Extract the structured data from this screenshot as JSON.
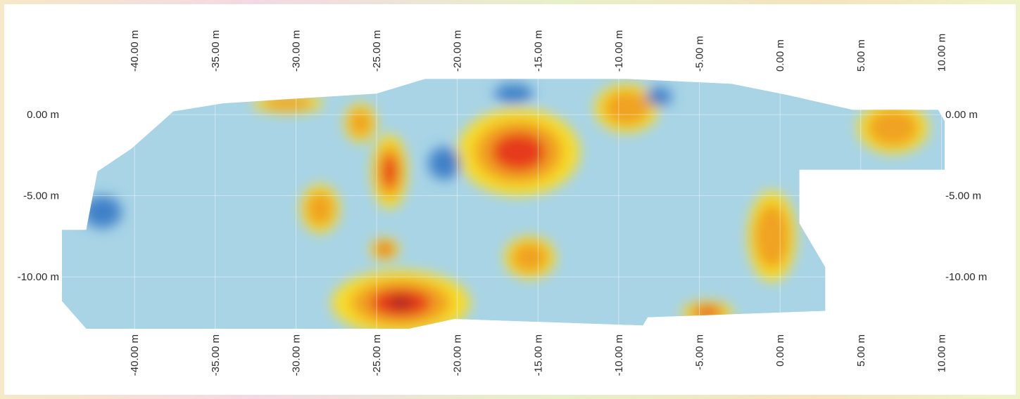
{
  "chart_data": {
    "type": "heatmap",
    "title": "",
    "xlabel": "",
    "ylabel": "",
    "x_ticks": [
      {
        "value": -40,
        "label": "-40.00 m"
      },
      {
        "value": -35,
        "label": "-35.00 m"
      },
      {
        "value": -30,
        "label": "-30.00 m"
      },
      {
        "value": -25,
        "label": "-25.00 m"
      },
      {
        "value": -20,
        "label": "-20.00 m"
      },
      {
        "value": -15,
        "label": "-15.00 m"
      },
      {
        "value": -10,
        "label": "-10.00 m"
      },
      {
        "value": -5,
        "label": "-5.00 m"
      },
      {
        "value": 0,
        "label": "0.00 m"
      },
      {
        "value": 5,
        "label": "5.00 m"
      },
      {
        "value": 10,
        "label": "10.00 m"
      }
    ],
    "y_ticks": [
      {
        "value": 0,
        "label": "0.00 m"
      },
      {
        "value": -5,
        "label": "-5.00 m"
      },
      {
        "value": -10,
        "label": "-10.00 m"
      }
    ],
    "xlim": [
      -44.5,
      10.2
    ],
    "ylim": [
      -13.2,
      2.3
    ],
    "grid": true,
    "colorscale": [
      "#3f80c8",
      "#a8d4e6",
      "#f7dc2a",
      "#f0a224",
      "#e63a1e",
      "#8e2020"
    ],
    "survey_outline": [
      [
        -44.5,
        -7.1
      ],
      [
        -43.0,
        -7.1
      ],
      [
        -42.3,
        -3.5
      ],
      [
        -40.2,
        -2.1
      ],
      [
        -38.5,
        -0.6
      ],
      [
        -37.6,
        0.2
      ],
      [
        -34.5,
        0.7
      ],
      [
        -25.0,
        1.3
      ],
      [
        -22.0,
        2.2
      ],
      [
        -9.5,
        2.2
      ],
      [
        -3.0,
        1.9
      ],
      [
        0.5,
        1.2
      ],
      [
        4.5,
        0.3
      ],
      [
        9.8,
        0.3
      ],
      [
        10.2,
        -0.4
      ],
      [
        10.2,
        -3.4
      ],
      [
        1.2,
        -3.4
      ],
      [
        1.2,
        -6.7
      ],
      [
        2.8,
        -9.4
      ],
      [
        2.8,
        -12.1
      ],
      [
        -8.2,
        -12.5
      ],
      [
        -8.5,
        -13.0
      ],
      [
        -20.2,
        -12.6
      ],
      [
        -23.0,
        -13.2
      ],
      [
        -43.0,
        -13.2
      ],
      [
        -44.5,
        -11.5
      ]
    ],
    "anomalies": [
      {
        "x": -23.5,
        "y": -11.6,
        "rx": 4.3,
        "ry": 2.0,
        "level": 5
      },
      {
        "x": -16.2,
        "y": -2.3,
        "rx": 3.8,
        "ry": 2.7,
        "level": 4
      },
      {
        "x": -24.2,
        "y": -3.5,
        "rx": 1.1,
        "ry": 2.3,
        "level": 4
      },
      {
        "x": -0.5,
        "y": -7.5,
        "rx": 1.5,
        "ry": 2.8,
        "level": 3
      },
      {
        "x": 7.0,
        "y": -0.8,
        "rx": 2.2,
        "ry": 1.6,
        "level": 3
      },
      {
        "x": -9.5,
        "y": 0.4,
        "rx": 2.0,
        "ry": 1.5,
        "level": 3
      },
      {
        "x": -30.5,
        "y": 0.7,
        "rx": 2.2,
        "ry": 0.6,
        "level": 3
      },
      {
        "x": -28.5,
        "y": -5.8,
        "rx": 1.2,
        "ry": 1.5,
        "level": 3
      },
      {
        "x": -4.5,
        "y": -12.2,
        "rx": 1.6,
        "ry": 0.7,
        "level": 4
      },
      {
        "x": -24.5,
        "y": -8.3,
        "rx": 0.9,
        "ry": 0.7,
        "level": 4
      },
      {
        "x": -26.0,
        "y": -0.5,
        "rx": 1.0,
        "ry": 1.2,
        "level": 3
      },
      {
        "x": -15.5,
        "y": -8.8,
        "rx": 1.6,
        "ry": 1.3,
        "level": 3
      },
      {
        "x": -7.5,
        "y": 1.1,
        "rx": 0.8,
        "ry": 0.6,
        "level": 1
      },
      {
        "x": -16.5,
        "y": 1.3,
        "rx": 1.2,
        "ry": 0.6,
        "level": 1
      },
      {
        "x": -42.0,
        "y": -6.0,
        "rx": 1.2,
        "ry": 1.0,
        "level": 1
      },
      {
        "x": -20.8,
        "y": -3.0,
        "rx": 1.0,
        "ry": 1.0,
        "level": 1
      }
    ]
  }
}
